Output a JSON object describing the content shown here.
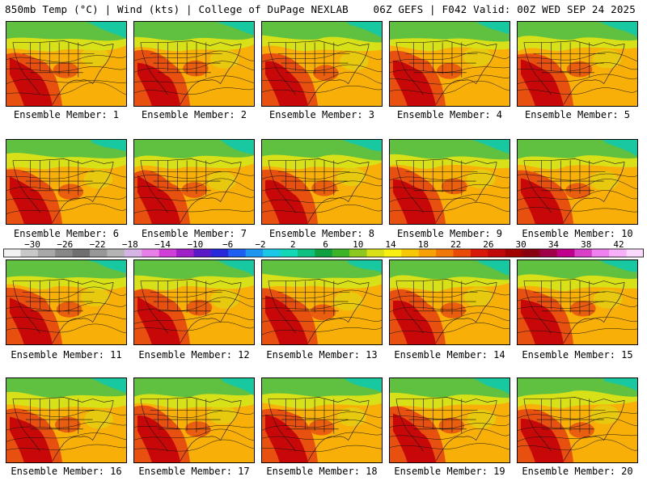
{
  "header": {
    "left_title": "850mb Temp (°C) | Wind (kts) | College of DuPage NEXLAB",
    "right_title": "06Z GEFS | F042 Valid: 00Z WED SEP 24 2025"
  },
  "panels": [
    {
      "label": "Ensemble Member: 1"
    },
    {
      "label": "Ensemble Member: 2"
    },
    {
      "label": "Ensemble Member: 3"
    },
    {
      "label": "Ensemble Member: 4"
    },
    {
      "label": "Ensemble Member: 5"
    },
    {
      "label": "Ensemble Member: 6"
    },
    {
      "label": "Ensemble Member: 7"
    },
    {
      "label": "Ensemble Member: 8"
    },
    {
      "label": "Ensemble Member: 9"
    },
    {
      "label": "Ensemble Member: 10"
    },
    {
      "label": "Ensemble Member: 11"
    },
    {
      "label": "Ensemble Member: 12"
    },
    {
      "label": "Ensemble Member: 13"
    },
    {
      "label": "Ensemble Member: 14"
    },
    {
      "label": "Ensemble Member: 15"
    },
    {
      "label": "Ensemble Member: 16"
    },
    {
      "label": "Ensemble Member: 17"
    },
    {
      "label": "Ensemble Member: 18"
    },
    {
      "label": "Ensemble Member: 19"
    },
    {
      "label": "Ensemble Member: 20"
    }
  ],
  "colorbar": {
    "tick_labels": [
      "−30",
      "−26",
      "−22",
      "−18",
      "−14",
      "−10",
      "−6",
      "−2",
      "2",
      "6",
      "10",
      "14",
      "18",
      "22",
      "26",
      "30",
      "34",
      "38",
      "42"
    ],
    "colors": [
      "#f2f2f2",
      "#c8c8c8",
      "#a8a8a8",
      "#888888",
      "#707070",
      "#989898",
      "#b4b4b4",
      "#d6b4e6",
      "#e87fe8",
      "#d040d8",
      "#a020c8",
      "#5a1ac8",
      "#2828d8",
      "#1e5ef0",
      "#1e96f0",
      "#18c8e6",
      "#12d8b8",
      "#10c080",
      "#10a040",
      "#3cb428",
      "#8cc820",
      "#d8e018",
      "#f8f010",
      "#f8c808",
      "#f8a008",
      "#f07808",
      "#e84a08",
      "#d81808",
      "#c00808",
      "#a00000",
      "#880010",
      "#a00048",
      "#c0008c",
      "#d840c8",
      "#f080f0",
      "#f8b0f8",
      "#fcd8fc"
    ]
  },
  "colors": {
    "cold": "#18c8a0",
    "cool": "#60c040",
    "mild": "#d8e018",
    "warm": "#f8b008",
    "hot": "#e85010",
    "very_hot": "#c80808"
  }
}
